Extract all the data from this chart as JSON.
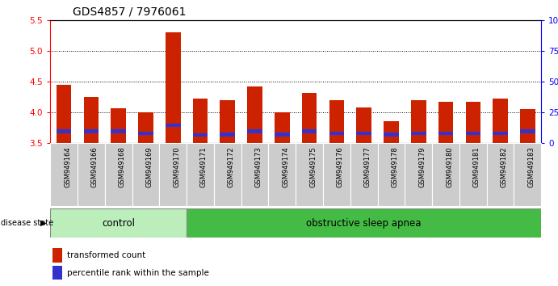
{
  "title": "GDS4857 / 7976061",
  "samples": [
    "GSM949164",
    "GSM949166",
    "GSM949168",
    "GSM949169",
    "GSM949170",
    "GSM949171",
    "GSM949172",
    "GSM949173",
    "GSM949174",
    "GSM949175",
    "GSM949176",
    "GSM949177",
    "GSM949178",
    "GSM949179",
    "GSM949180",
    "GSM949181",
    "GSM949182",
    "GSM949183"
  ],
  "red_values": [
    4.45,
    4.25,
    4.07,
    4.0,
    5.3,
    4.22,
    4.19,
    4.42,
    4.0,
    4.31,
    4.19,
    4.08,
    3.85,
    4.2,
    4.17,
    4.17,
    4.22,
    4.05
  ],
  "blue_values": [
    0.06,
    0.06,
    0.06,
    0.06,
    0.06,
    0.06,
    0.06,
    0.06,
    0.06,
    0.06,
    0.06,
    0.06,
    0.06,
    0.06,
    0.06,
    0.06,
    0.06,
    0.06
  ],
  "blue_bottoms": [
    3.66,
    3.66,
    3.66,
    3.63,
    3.76,
    3.6,
    3.61,
    3.66,
    3.61,
    3.66,
    3.63,
    3.63,
    3.61,
    3.63,
    3.63,
    3.63,
    3.63,
    3.66
  ],
  "ymin": 3.5,
  "ymax": 5.5,
  "yticks": [
    3.5,
    4.0,
    4.5,
    5.0,
    5.5
  ],
  "grid_vals": [
    4.0,
    4.5,
    5.0
  ],
  "bar_color": "#cc2200",
  "blue_color": "#3333cc",
  "bar_width": 0.55,
  "control_n": 5,
  "control_label": "control",
  "apnea_label": "obstructive sleep apnea",
  "disease_state_label": "disease state",
  "legend_red": "transformed count",
  "legend_blue": "percentile rank within the sample",
  "control_color": "#bbeebb",
  "apnea_color": "#44bb44",
  "title_fontsize": 10,
  "tick_fontsize": 7.5,
  "label_fontsize": 8.5
}
